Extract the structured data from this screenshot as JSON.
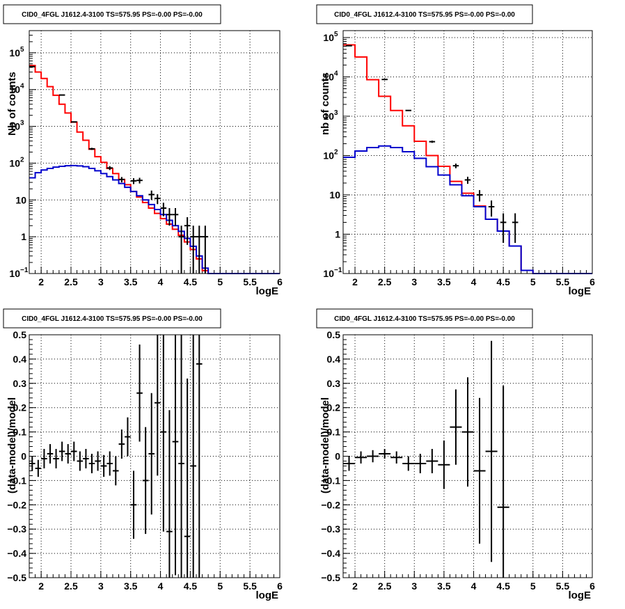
{
  "chart_data": [
    {
      "type": "line",
      "title": "CID0_4FGL J1612.4-3100 TS=575.95 PS=-0.00 PS=-0.00",
      "xlabel": "logE",
      "ylabel": "Nb of counts",
      "yscale": "log",
      "xlim": [
        1.8,
        6
      ],
      "ylim": [
        0.1,
        400000
      ],
      "grid": true,
      "x_ticks": [
        "2",
        "2.5",
        "3",
        "3.5",
        "4",
        "4.5",
        "5",
        "5.5",
        "6"
      ],
      "y_ticks": [
        {
          "value": 0.1,
          "label": "10",
          "exp": "−1"
        },
        {
          "value": 1,
          "label": "1",
          "exp": ""
        },
        {
          "value": 10,
          "label": "10",
          "exp": ""
        },
        {
          "value": 100,
          "label": "10",
          "exp": "2"
        },
        {
          "value": 1000,
          "label": "10",
          "exp": "3"
        },
        {
          "value": 10000,
          "label": "10",
          "exp": "4"
        },
        {
          "value": 100000,
          "label": "10",
          "exp": "5"
        }
      ],
      "bin_edges": [
        1.8,
        1.9,
        2.0,
        2.1,
        2.2,
        2.3,
        2.4,
        2.5,
        2.6,
        2.7,
        2.8,
        2.9,
        3.0,
        3.1,
        3.2,
        3.3,
        3.4,
        3.5,
        3.6,
        3.7,
        3.8,
        3.9,
        4.0,
        4.1,
        4.2,
        4.3,
        4.4,
        4.5,
        4.6,
        4.7,
        4.8,
        4.9,
        5.0,
        5.1,
        5.2,
        5.3,
        5.4,
        5.5,
        5.6,
        5.7,
        5.8,
        5.9,
        6.0
      ],
      "series": [
        {
          "color": "#ff0000",
          "values": [
            45000,
            30000,
            20000,
            12000,
            7000,
            4000,
            2300,
            1300,
            700,
            420,
            240,
            150,
            105,
            72,
            52,
            36,
            26,
            17,
            12,
            8.5,
            6,
            4.3,
            3.1,
            2.2,
            1.6,
            1.1,
            0.72,
            0.45,
            0.25,
            0.12,
            0.1,
            0.1,
            0.1,
            0.1,
            0.1,
            0.1,
            0.1,
            0.1,
            0.1,
            0.1,
            0.1,
            0.1
          ]
        },
        {
          "color": "#0000cc",
          "values": [
            40,
            55,
            65,
            72,
            78,
            82,
            85,
            86,
            84,
            80,
            72,
            62,
            52,
            43,
            35,
            28,
            22,
            17,
            13,
            10,
            7.5,
            5.5,
            4,
            2.8,
            2,
            1.4,
            0.9,
            0.55,
            0.3,
            0.14,
            0.1,
            0.1,
            0.1,
            0.1,
            0.1,
            0.1,
            0.1,
            0.1,
            0.1,
            0.1,
            0.1,
            0.1
          ]
        }
      ],
      "data_points": [
        {
          "x": 1.85,
          "y": 42000,
          "yerr": [
            205,
            205
          ]
        },
        {
          "x": 2.35,
          "y": 7100,
          "yerr": [
            85,
            85
          ]
        },
        {
          "x": 2.55,
          "y": 1320,
          "yerr": [
            36,
            36
          ]
        },
        {
          "x": 2.85,
          "y": 245,
          "yerr": [
            16,
            16
          ]
        },
        {
          "x": 3.15,
          "y": 74,
          "yerr": [
            9,
            9
          ]
        },
        {
          "x": 3.35,
          "y": 36,
          "yerr": [
            6,
            6
          ]
        },
        {
          "x": 3.55,
          "y": 33,
          "yerr": [
            6,
            6
          ]
        },
        {
          "x": 3.65,
          "y": 34,
          "yerr": [
            6,
            6
          ]
        },
        {
          "x": 3.85,
          "y": 14,
          "yerr": [
            4,
            4
          ]
        },
        {
          "x": 3.95,
          "y": 11,
          "yerr": [
            3.3,
            3.3
          ]
        },
        {
          "x": 4.05,
          "y": 6,
          "yerr": [
            2.4,
            2.4
          ]
        },
        {
          "x": 4.15,
          "y": 4,
          "yerr": [
            2,
            2
          ]
        },
        {
          "x": 4.25,
          "y": 4,
          "yerr": [
            2,
            2
          ]
        },
        {
          "x": 4.35,
          "y": 1,
          "yerr": [
            0.9,
            1
          ]
        },
        {
          "x": 4.45,
          "y": 2,
          "yerr": [
            1.4,
            1.4
          ]
        },
        {
          "x": 4.55,
          "y": 1,
          "yerr": [
            0.9,
            1
          ]
        },
        {
          "x": 4.65,
          "y": 1,
          "yerr": [
            0.9,
            1
          ]
        },
        {
          "x": 4.75,
          "y": 1,
          "yerr": [
            0.9,
            1
          ]
        }
      ]
    },
    {
      "type": "line",
      "title": "CID0_4FGL J1612.4-3100 TS=575.95 PS=-0.00 PS=-0.00",
      "xlabel": "logE",
      "ylabel": "nb of counts",
      "yscale": "log",
      "xlim": [
        1.8,
        6
      ],
      "ylim": [
        0.1,
        150000
      ],
      "grid": true,
      "x_ticks": [
        "2",
        "2.5",
        "3",
        "3.5",
        "4",
        "4.5",
        "5",
        "5.5",
        "6"
      ],
      "y_ticks": [
        {
          "value": 0.1,
          "label": "10",
          "exp": "−1"
        },
        {
          "value": 1,
          "label": "1",
          "exp": ""
        },
        {
          "value": 10,
          "label": "10",
          "exp": ""
        },
        {
          "value": 100,
          "label": "10",
          "exp": "2"
        },
        {
          "value": 1000,
          "label": "10",
          "exp": "3"
        },
        {
          "value": 10000,
          "label": "10",
          "exp": "4"
        },
        {
          "value": 100000,
          "label": "10",
          "exp": "5"
        }
      ],
      "bin_edges": [
        1.8,
        2.0,
        2.2,
        2.4,
        2.6,
        2.8,
        3.0,
        3.2,
        3.4,
        3.6,
        3.8,
        4.0,
        4.2,
        4.4,
        4.6,
        4.8,
        5.0,
        5.2,
        5.4,
        5.6,
        5.8,
        6.0
      ],
      "series": [
        {
          "color": "#ff0000",
          "values": [
            65000,
            32000,
            8500,
            3200,
            1400,
            570,
            230,
            100,
            53,
            22,
            11,
            5.2,
            2.4,
            1.2,
            0.5,
            0.12,
            0.1,
            0.1,
            0.1,
            0.1,
            0.1
          ]
        },
        {
          "color": "#0000cc",
          "values": [
            90,
            130,
            160,
            175,
            160,
            125,
            85,
            52,
            32,
            18,
            9.5,
            5,
            2.4,
            1.2,
            0.5,
            0.12,
            0.1,
            0.1,
            0.1,
            0.1,
            0.1
          ]
        }
      ],
      "data_points": [
        {
          "x": 1.9,
          "y": 62000,
          "yerr": [
            250,
            250
          ]
        },
        {
          "x": 2.5,
          "y": 8600,
          "yerr": [
            93,
            93
          ]
        },
        {
          "x": 2.9,
          "y": 1400,
          "yerr": [
            37,
            37
          ]
        },
        {
          "x": 3.3,
          "y": 225,
          "yerr": [
            15,
            15
          ]
        },
        {
          "x": 3.7,
          "y": 55,
          "yerr": [
            7.4,
            7.4
          ]
        },
        {
          "x": 3.9,
          "y": 24,
          "yerr": [
            4.9,
            4.9
          ]
        },
        {
          "x": 4.1,
          "y": 10,
          "yerr": [
            3.2,
            3.2
          ]
        },
        {
          "x": 4.3,
          "y": 5,
          "yerr": [
            2.2,
            2.2
          ]
        },
        {
          "x": 4.5,
          "y": 2,
          "yerr": [
            1.4,
            1.4
          ]
        },
        {
          "x": 4.7,
          "y": 2,
          "yerr": [
            1.4,
            1.4
          ]
        }
      ]
    },
    {
      "type": "scatter",
      "title": "CID0_4FGL J1612.4-3100 TS=575.95 PS=-0.00 PS=-0.00",
      "xlabel": "logE",
      "ylabel": "(data-model)/model",
      "yscale": "linear",
      "xlim": [
        1.8,
        6
      ],
      "ylim": [
        -0.5,
        0.5
      ],
      "grid": true,
      "x_ticks": [
        "2",
        "2.5",
        "3",
        "3.5",
        "4",
        "4.5",
        "5",
        "5.5",
        "6"
      ],
      "y_ticks": [
        {
          "value": -0.5,
          "label": "−0.5"
        },
        {
          "value": -0.4,
          "label": "−0.4"
        },
        {
          "value": -0.3,
          "label": "−0.3"
        },
        {
          "value": -0.2,
          "label": "−0.2"
        },
        {
          "value": -0.1,
          "label": "−0.1"
        },
        {
          "value": 0,
          "label": "0"
        },
        {
          "value": 0.1,
          "label": "0.1"
        },
        {
          "value": 0.2,
          "label": "0.2"
        },
        {
          "value": 0.3,
          "label": "0.3"
        },
        {
          "value": 0.4,
          "label": "0.4"
        },
        {
          "value": 0.5,
          "label": "0.5"
        }
      ],
      "x_half_width": 0.05,
      "data_points": [
        {
          "x": 1.85,
          "y": -0.03,
          "yerr": 0.03
        },
        {
          "x": 1.95,
          "y": -0.05,
          "yerr": 0.035
        },
        {
          "x": 2.05,
          "y": -0.01,
          "yerr": 0.04
        },
        {
          "x": 2.15,
          "y": 0.01,
          "yerr": 0.04
        },
        {
          "x": 2.25,
          "y": -0.01,
          "yerr": 0.04
        },
        {
          "x": 2.35,
          "y": 0.02,
          "yerr": 0.04
        },
        {
          "x": 2.45,
          "y": 0.01,
          "yerr": 0.04
        },
        {
          "x": 2.55,
          "y": 0.02,
          "yerr": 0.04
        },
        {
          "x": 2.65,
          "y": -0.02,
          "yerr": 0.04
        },
        {
          "x": 2.75,
          "y": -0.01,
          "yerr": 0.04
        },
        {
          "x": 2.85,
          "y": -0.03,
          "yerr": 0.04
        },
        {
          "x": 2.95,
          "y": -0.02,
          "yerr": 0.04
        },
        {
          "x": 3.05,
          "y": -0.04,
          "yerr": 0.045
        },
        {
          "x": 3.15,
          "y": -0.03,
          "yerr": 0.05
        },
        {
          "x": 3.25,
          "y": -0.06,
          "yerr": 0.06
        },
        {
          "x": 3.35,
          "y": 0.05,
          "yerr": 0.06
        },
        {
          "x": 3.45,
          "y": 0.08,
          "yerr": 0.08
        },
        {
          "x": 3.55,
          "y": -0.2,
          "yerr": 0.14
        },
        {
          "x": 3.65,
          "y": 0.26,
          "yerr": 0.2
        },
        {
          "x": 3.75,
          "y": -0.1,
          "yerr": 0.22
        },
        {
          "x": 3.85,
          "y": 0.01,
          "yerr": 0.25
        },
        {
          "x": 3.95,
          "y": 0.22,
          "yerr": 0.3
        },
        {
          "x": 4.05,
          "y": 0.1,
          "yerr": 0.41
        },
        {
          "x": 4.15,
          "y": -0.31,
          "yerr": 0.5
        },
        {
          "x": 4.25,
          "y": 0.06,
          "yerr": 0.55
        },
        {
          "x": 4.35,
          "y": -0.03,
          "yerr": 0.6
        },
        {
          "x": 4.45,
          "y": -0.33,
          "yerr": 0.65
        },
        {
          "x": 4.55,
          "y": -0.04,
          "yerr": 0.7
        },
        {
          "x": 4.65,
          "y": 0.38,
          "yerr": 0.9
        }
      ]
    },
    {
      "type": "scatter",
      "title": "CID0_4FGL J1612.4-3100 TS=575.95 PS=-0.00 PS=-0.00",
      "xlabel": "logE",
      "ylabel": "(data-model)/model",
      "yscale": "linear",
      "xlim": [
        1.8,
        6
      ],
      "ylim": [
        -0.5,
        0.5
      ],
      "grid": true,
      "x_ticks": [
        "2",
        "2.5",
        "3",
        "3.5",
        "4",
        "4.5",
        "5",
        "5.5",
        "6"
      ],
      "y_ticks": [
        {
          "value": -0.5,
          "label": "−0.5"
        },
        {
          "value": -0.4,
          "label": "−0.4"
        },
        {
          "value": -0.3,
          "label": "−0.3"
        },
        {
          "value": -0.2,
          "label": "−0.2"
        },
        {
          "value": -0.1,
          "label": "−0.1"
        },
        {
          "value": 0,
          "label": "0"
        },
        {
          "value": 0.1,
          "label": "0.1"
        },
        {
          "value": 0.2,
          "label": "0.2"
        },
        {
          "value": 0.3,
          "label": "0.3"
        },
        {
          "value": 0.4,
          "label": "0.4"
        },
        {
          "value": 0.5,
          "label": "0.5"
        }
      ],
      "x_half_width": 0.1,
      "data_points": [
        {
          "x": 1.9,
          "y": -0.03,
          "yerr": 0.03
        },
        {
          "x": 2.1,
          "y": -0.005,
          "yerr": 0.025
        },
        {
          "x": 2.3,
          "y": 0.0,
          "yerr": 0.025
        },
        {
          "x": 2.5,
          "y": 0.01,
          "yerr": 0.02
        },
        {
          "x": 2.7,
          "y": -0.005,
          "yerr": 0.025
        },
        {
          "x": 2.9,
          "y": -0.03,
          "yerr": 0.03
        },
        {
          "x": 3.1,
          "y": -0.03,
          "yerr": 0.04
        },
        {
          "x": 3.3,
          "y": -0.02,
          "yerr": 0.05
        },
        {
          "x": 3.5,
          "y": -0.035,
          "yerr": 0.1
        },
        {
          "x": 3.7,
          "y": 0.12,
          "yerr": 0.155
        },
        {
          "x": 3.9,
          "y": 0.1,
          "yerr": 0.225
        },
        {
          "x": 4.1,
          "y": -0.06,
          "yerr": 0.3
        },
        {
          "x": 4.3,
          "y": 0.02,
          "yerr": 0.455
        },
        {
          "x": 4.5,
          "y": -0.21,
          "yerr": 0.5
        }
      ]
    }
  ]
}
